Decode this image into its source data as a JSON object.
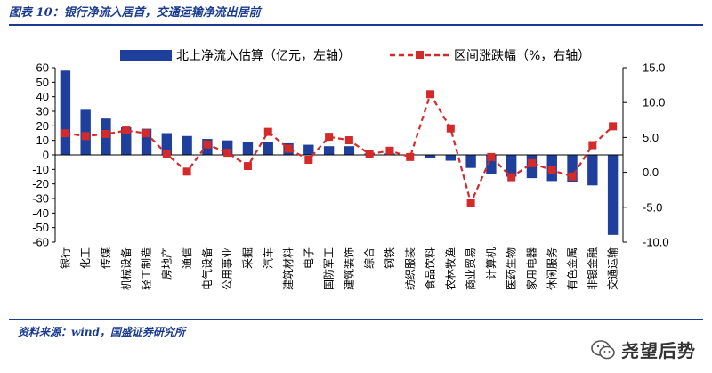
{
  "title": "图表 10：银行净流入居首，交通运输净流出居前",
  "source": "资料来源：wind，国盛证券研究所",
  "watermark": "尧望后势",
  "colors": {
    "bar": "#1f3f9c",
    "line": "#d42a2a",
    "title": "#1a3b8f"
  },
  "chart_data": {
    "type": "bar",
    "categories": [
      "银行",
      "化工",
      "传媒",
      "机械设备",
      "轻工制造",
      "房地产",
      "通信",
      "电气设备",
      "公用事业",
      "采掘",
      "汽车",
      "建筑材料",
      "电子",
      "国防军工",
      "建筑装饰",
      "综合",
      "钢铁",
      "纺织服装",
      "食品饮料",
      "农林牧渔",
      "商业贸易",
      "计算机",
      "医药生物",
      "家用电器",
      "休闲服务",
      "有色金属",
      "非银金融",
      "交通运输"
    ],
    "series": [
      {
        "name": "北上净流入估算（亿元，左轴）",
        "type": "bar",
        "axis": "left",
        "values": [
          58,
          31,
          25,
          19,
          18,
          15,
          13,
          11,
          10,
          9,
          9,
          8,
          7,
          6,
          6,
          1,
          1,
          0,
          -2,
          -4,
          -9,
          -13,
          -15,
          -16,
          -18,
          -19,
          -21,
          -55
        ]
      },
      {
        "name": "区间涨跌幅（%，右轴）",
        "type": "line",
        "axis": "right",
        "values": [
          5.6,
          5.2,
          5.5,
          6.0,
          5.6,
          2.6,
          0.1,
          4.0,
          2.8,
          0.9,
          5.8,
          3.4,
          1.8,
          5.1,
          4.6,
          2.6,
          3.1,
          2.2,
          11.2,
          6.3,
          -4.4,
          2.2,
          -0.7,
          1.3,
          0.3,
          -0.6,
          3.9,
          6.6
        ]
      }
    ],
    "y_left": {
      "min": -60,
      "max": 60,
      "step": 10,
      "ticks": [
        "60",
        "50",
        "40",
        "30",
        "20",
        "10",
        "0",
        "-10",
        "-20",
        "-30",
        "-40",
        "-50",
        "-60"
      ]
    },
    "y_right": {
      "min": -10,
      "max": 15,
      "step": 5,
      "ticks": [
        "15.0",
        "10.0",
        "5.0",
        "0.0",
        "-5.0",
        "-10.0"
      ]
    },
    "legend_position": "top",
    "grid": false
  }
}
